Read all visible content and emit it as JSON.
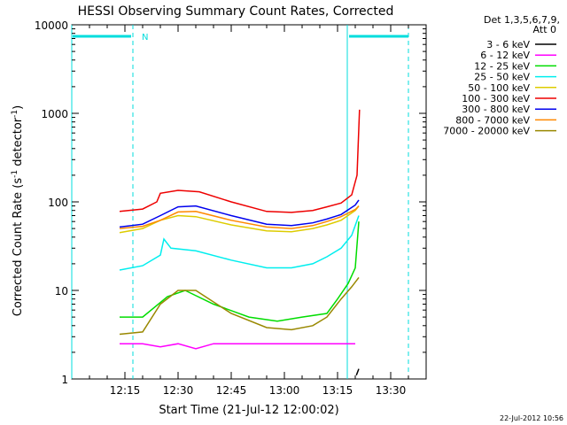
{
  "chart_data": {
    "type": "line",
    "title": "HESSI Observing Summary Count Rates, Corrected",
    "xlabel": "Start Time (21-Jul-12 12:00:02)",
    "ylabel_main": "Corrected Count Rate (s",
    "ylabel_sup1": "-1",
    "ylabel_mid": " detector",
    "ylabel_sup2": "-1",
    "ylabel_end": ")",
    "footer": "22-Jul-2012 10:56",
    "y_scale": "log",
    "ylim": [
      1,
      10000
    ],
    "xlim_min": [
      0,
      100
    ],
    "xtick_minutes": [
      15,
      30,
      45,
      60,
      75,
      90
    ],
    "xtick_labels": [
      "12:15",
      "12:30",
      "12:45",
      "13:00",
      "13:15",
      "13:30"
    ],
    "ytick_values": [
      1,
      10,
      100,
      1000,
      10000
    ],
    "ytick_labels": [
      "1",
      "10",
      "100",
      "1000",
      "10000"
    ],
    "legend_placement": "right, outside plot",
    "legend_header": [
      "Det 1,3,5,6,7,9,",
      "Att 0"
    ],
    "series": [
      {
        "name": "3 - 6 keV",
        "color": "#000000",
        "points": [
          [
            80.3,
            1.1
          ],
          [
            81,
            1.3
          ]
        ]
      },
      {
        "name": "6 - 12 keV",
        "color": "#ff00ff",
        "points": [
          [
            13.5,
            2.5
          ],
          [
            20,
            2.5
          ],
          [
            25,
            2.3
          ],
          [
            30,
            2.5
          ],
          [
            35,
            2.2
          ],
          [
            40,
            2.5
          ],
          [
            50,
            2.5
          ],
          [
            60,
            2.5
          ],
          [
            70,
            2.5
          ],
          [
            78,
            2.5
          ],
          [
            80,
            2.5
          ]
        ]
      },
      {
        "name": "12 - 25 keV",
        "color": "#00dd00",
        "points": [
          [
            13.5,
            5
          ],
          [
            20,
            5
          ],
          [
            27,
            8.5
          ],
          [
            32,
            10
          ],
          [
            40,
            7
          ],
          [
            50,
            5
          ],
          [
            58,
            4.5
          ],
          [
            65,
            5
          ],
          [
            72,
            5.5
          ],
          [
            75,
            8
          ],
          [
            78,
            12
          ],
          [
            80,
            18
          ],
          [
            81,
            60
          ]
        ]
      },
      {
        "name": "25 - 50 keV",
        "color": "#00eeee",
        "points": [
          [
            13.5,
            17
          ],
          [
            20,
            19
          ],
          [
            25,
            25
          ],
          [
            26,
            38
          ],
          [
            28,
            30
          ],
          [
            35,
            28
          ],
          [
            45,
            22
          ],
          [
            55,
            18
          ],
          [
            62,
            18
          ],
          [
            68,
            20
          ],
          [
            72,
            24
          ],
          [
            76,
            30
          ],
          [
            79,
            42
          ],
          [
            81,
            70
          ]
        ]
      },
      {
        "name": "50 - 100 keV",
        "color": "#ddcc00",
        "points": [
          [
            13.5,
            45
          ],
          [
            20,
            50
          ],
          [
            25,
            62
          ],
          [
            30,
            70
          ],
          [
            35,
            68
          ],
          [
            45,
            55
          ],
          [
            55,
            47
          ],
          [
            62,
            46
          ],
          [
            68,
            50
          ],
          [
            72,
            55
          ],
          [
            76,
            62
          ],
          [
            80,
            80
          ],
          [
            81,
            90
          ]
        ]
      },
      {
        "name": "100 - 300 keV",
        "color": "#ee0000",
        "points": [
          [
            13.5,
            78
          ],
          [
            20,
            83
          ],
          [
            24,
            100
          ],
          [
            25,
            125
          ],
          [
            30,
            135
          ],
          [
            36,
            130
          ],
          [
            45,
            100
          ],
          [
            55,
            78
          ],
          [
            62,
            76
          ],
          [
            68,
            80
          ],
          [
            72,
            88
          ],
          [
            76,
            97
          ],
          [
            79,
            120
          ],
          [
            80.5,
            200
          ],
          [
            81.2,
            1100
          ]
        ]
      },
      {
        "name": "300 - 800 keV",
        "color": "#0000ee",
        "points": [
          [
            13.5,
            52
          ],
          [
            20,
            56
          ],
          [
            25,
            70
          ],
          [
            30,
            88
          ],
          [
            35,
            90
          ],
          [
            45,
            70
          ],
          [
            55,
            56
          ],
          [
            62,
            54
          ],
          [
            68,
            58
          ],
          [
            72,
            64
          ],
          [
            76,
            72
          ],
          [
            80,
            92
          ],
          [
            81,
            105
          ]
        ]
      },
      {
        "name": "800 - 7000 keV",
        "color": "#ff8800",
        "points": [
          [
            13.5,
            50
          ],
          [
            20,
            53
          ],
          [
            25,
            62
          ],
          [
            30,
            77
          ],
          [
            35,
            78
          ],
          [
            45,
            62
          ],
          [
            55,
            52
          ],
          [
            62,
            50
          ],
          [
            68,
            54
          ],
          [
            72,
            60
          ],
          [
            76,
            68
          ],
          [
            80,
            82
          ],
          [
            81,
            90
          ]
        ]
      },
      {
        "name": "7000 - 20000 keV",
        "color": "#998800",
        "points": [
          [
            13.5,
            3.2
          ],
          [
            20,
            3.4
          ],
          [
            25,
            7
          ],
          [
            30,
            10
          ],
          [
            35,
            10
          ],
          [
            45,
            5.5
          ],
          [
            55,
            3.8
          ],
          [
            62,
            3.6
          ],
          [
            68,
            4
          ],
          [
            72,
            5
          ],
          [
            76,
            8
          ],
          [
            79,
            11
          ],
          [
            81,
            14
          ]
        ]
      }
    ],
    "night_marker_label": "N",
    "night_bar_color": "#00dddd"
  }
}
